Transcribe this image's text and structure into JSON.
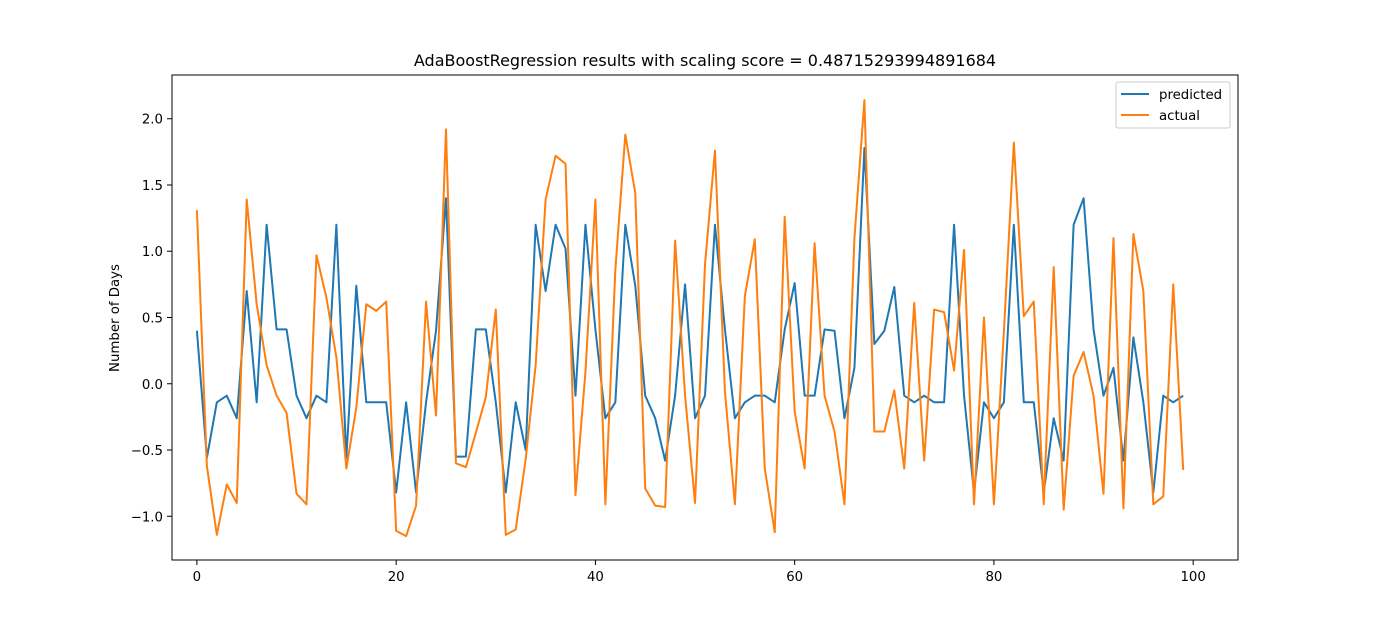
{
  "chart_data": {
    "type": "line",
    "title": "AdaBoostRegression results with scaling score = 0.48715293994891684",
    "xlabel": "",
    "ylabel": "Number of Days",
    "xlim": [
      -2.5,
      104.5
    ],
    "ylim": [
      -1.33,
      2.33
    ],
    "xticks": [
      0,
      20,
      40,
      60,
      80,
      100
    ],
    "xtick_labels": [
      "0",
      "20",
      "40",
      "60",
      "80",
      "100"
    ],
    "yticks": [
      -1.0,
      -0.5,
      0.0,
      0.5,
      1.0,
      1.5,
      2.0
    ],
    "ytick_labels": [
      "−1.0",
      "−0.5",
      "0.0",
      "0.5",
      "1.0",
      "1.5",
      "2.0"
    ],
    "grid": false,
    "legend_position": "top-right",
    "series": [
      {
        "name": "predicted",
        "color": "#1f77b4",
        "values": [
          0.4,
          -0.56,
          -0.14,
          -0.09,
          -0.26,
          0.7,
          -0.14,
          1.2,
          0.41,
          0.41,
          -0.09,
          -0.26,
          -0.09,
          -0.14,
          1.2,
          -0.56,
          0.74,
          -0.14,
          -0.14,
          -0.14,
          -0.82,
          -0.14,
          -0.82,
          -0.14,
          0.4,
          1.4,
          -0.55,
          -0.55,
          0.41,
          0.41,
          -0.14,
          -0.82,
          -0.14,
          -0.5,
          1.2,
          0.7,
          1.2,
          1.02,
          -0.09,
          1.2,
          0.41,
          -0.26,
          -0.14,
          1.2,
          0.74,
          -0.09,
          -0.26,
          -0.58,
          -0.09,
          0.75,
          -0.26,
          -0.09,
          1.2,
          0.41,
          -0.26,
          -0.14,
          -0.09,
          -0.09,
          -0.14,
          0.41,
          0.76,
          -0.09,
          -0.09,
          0.41,
          0.4,
          -0.26,
          0.12,
          1.78,
          0.3,
          0.4,
          0.73,
          -0.09,
          -0.14,
          -0.09,
          -0.14,
          -0.14,
          1.2,
          -0.09,
          -0.82,
          -0.14,
          -0.26,
          -0.14,
          1.2,
          -0.14,
          -0.14,
          -0.82,
          -0.26,
          -0.58,
          1.2,
          1.4,
          0.41,
          -0.09,
          0.12,
          -0.58,
          0.35,
          -0.14,
          -0.82,
          -0.09,
          -0.14,
          -0.09
        ]
      },
      {
        "name": "actual",
        "color": "#ff7f0e",
        "values": [
          1.31,
          -0.62,
          -1.14,
          -0.76,
          -0.9,
          1.39,
          0.6,
          0.14,
          -0.09,
          -0.22,
          -0.83,
          -0.91,
          0.97,
          0.65,
          0.2,
          -0.64,
          -0.18,
          0.6,
          0.55,
          0.62,
          -1.11,
          -1.15,
          -0.92,
          0.62,
          -0.24,
          1.92,
          -0.6,
          -0.63,
          -0.37,
          -0.1,
          0.56,
          -1.14,
          -1.1,
          -0.57,
          0.14,
          1.39,
          1.72,
          1.66,
          -0.84,
          0.09,
          1.39,
          -0.91,
          0.86,
          1.88,
          1.44,
          -0.79,
          -0.92,
          -0.93,
          1.08,
          -0.09,
          -0.9,
          0.9,
          1.76,
          -0.06,
          -0.91,
          0.66,
          1.09,
          -0.64,
          -1.12,
          1.26,
          -0.21,
          -0.64,
          1.06,
          -0.09,
          -0.36,
          -0.91,
          1.1,
          2.14,
          -0.36,
          -0.36,
          -0.05,
          -0.64,
          0.61,
          -0.58,
          0.56,
          0.54,
          0.1,
          1.01,
          -0.91,
          0.5,
          -0.91,
          0.39,
          1.82,
          0.51,
          0.62,
          -0.91,
          0.88,
          -0.95,
          0.06,
          0.24,
          -0.09,
          -0.83,
          1.1,
          -0.94,
          1.13,
          0.7,
          -0.91,
          -0.85,
          0.75,
          -0.65
        ]
      }
    ]
  }
}
